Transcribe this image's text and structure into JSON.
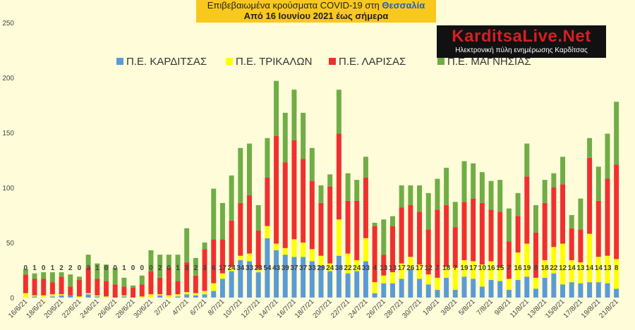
{
  "header": {
    "title_line1_prefix": "Επιβεβαιωμένα κρούσματα COVID-19 στη ",
    "title_line1_region": "Θεσσαλία",
    "title_line2": "Από 16 Ιουνίου 2021 έως σήμερα"
  },
  "logo": {
    "name": "KarditsaLive.Net",
    "tagline": "Ηλεκτρονική πύλη ενημέρωσης Καρδίτσας"
  },
  "colors": {
    "background": "#fffdd9",
    "kardits": "#5b9bd5",
    "trikala": "#ffff00",
    "larisa": "#f03030",
    "magnisia": "#70ad47"
  },
  "chart_data": {
    "type": "bar",
    "stacked": true,
    "ylim": [
      0,
      250
    ],
    "yticks": [
      0,
      50,
      100,
      150,
      200,
      250
    ],
    "grid": false,
    "legend_position": "top",
    "categories": [
      "16/6/21",
      "17/6/21",
      "18/6/21",
      "19/6/21",
      "20/6/21",
      "21/6/21",
      "22/6/21",
      "23/6/21",
      "24/6/21",
      "25/6/21",
      "26/6/21",
      "27/6/21",
      "28/6/21",
      "29/6/21",
      "30/6/21",
      "1/7/21",
      "2/7/21",
      "3/7/21",
      "4/7/21",
      "5/7/21",
      "6/7/21",
      "7/7/21",
      "8/7/21",
      "9/7/21",
      "10/7/21",
      "11/7/21",
      "12/7/21",
      "13/7/21",
      "14/7/21",
      "15/7/21",
      "16/7/21",
      "17/7/21",
      "18/7/21",
      "19/7/21",
      "20/7/21",
      "21/7/21",
      "22/7/21",
      "23/7/21",
      "24/7/21",
      "25/7/21",
      "26/7/21",
      "27/7/21",
      "28/7/21",
      "29/7/21",
      "30/7/21",
      "31/7/21",
      "1/8/21",
      "2/8/21",
      "3/8/21",
      "4/8/21",
      "5/8/21",
      "6/8/21",
      "7/8/21",
      "8/8/21",
      "9/8/21",
      "10/8/21",
      "11/8/21",
      "12/8/21",
      "13/8/21",
      "14/8/21",
      "15/8/21",
      "16/8/21",
      "17/8/21",
      "18/8/21",
      "19/8/21",
      "20/8/21",
      "21/8/21"
    ],
    "xtick_labels": [
      "16/6/21",
      "18/6/21",
      "20/6/21",
      "22/6/21",
      "24/6/21",
      "26/6/21",
      "28/6/21",
      "30/6/21",
      "2/7/21",
      "4/7/21",
      "6/7/21",
      "8/7/21",
      "10/7/21",
      "12/7/21",
      "14/7/21",
      "16/7/21",
      "18/7/21",
      "20/7/21",
      "22/7/21",
      "24/7/21",
      "26/7/21",
      "28/7/21",
      "30/7/21",
      "1/8/21",
      "3/8/21",
      "5/8/21",
      "7/8/21",
      "9/8/21",
      "11/8/21",
      "13/8/21",
      "15/8/21",
      "17/8/21",
      "19/8/21",
      "21/8/21"
    ],
    "series": [
      {
        "name": "Π.Ε. ΚΑΡΔΙΤΣΑΣ",
        "values": [
          0,
          1,
          0,
          1,
          2,
          2,
          0,
          3,
          1,
          0,
          0,
          1,
          0,
          0,
          0,
          2,
          0,
          1,
          3,
          2,
          3,
          6,
          17,
          24,
          34,
          33,
          23,
          54,
          43,
          39,
          37,
          37,
          33,
          29,
          24,
          38,
          22,
          24,
          33,
          4,
          13,
          13,
          17,
          26,
          17,
          12,
          7,
          18,
          7,
          19,
          17,
          10,
          16,
          15,
          7,
          16,
          19,
          8,
          18,
          22,
          12,
          14,
          13,
          14,
          14,
          13,
          8
        ]
      },
      {
        "name": "Π.Ε. ΤΡΙΚΑΛΩΝ",
        "values": [
          4,
          1,
          2,
          2,
          1,
          0,
          1,
          1,
          1,
          1,
          0,
          1,
          0,
          1,
          3,
          1,
          2,
          2,
          2,
          2,
          3,
          7,
          5,
          4,
          4,
          7,
          3,
          11,
          6,
          6,
          16,
          13,
          11,
          9,
          7,
          33,
          18,
          10,
          21,
          10,
          7,
          10,
          14,
          11,
          13,
          9,
          11,
          10,
          20,
          15,
          16,
          20,
          17,
          12,
          10,
          25,
          30,
          10,
          16,
          24,
          37,
          20,
          19,
          44,
          23,
          25,
          27
        ]
      },
      {
        "name": "Π.Ε. ΛΑΡΙΣΑΣ",
        "values": [
          17,
          15,
          15,
          11,
          16,
          8,
          15,
          24,
          15,
          14,
          12,
          8,
          9,
          11,
          21,
          15,
          25,
          12,
          27,
          16,
          38,
          40,
          31,
          42,
          48,
          53,
          35,
          44,
          98,
          78,
          90,
          76,
          62,
          48,
          70,
          78,
          48,
          54,
          55,
          51,
          19,
          42,
          51,
          47,
          48,
          41,
          62,
          56,
          37,
          53,
          57,
          56,
          47,
          51,
          34,
          33,
          61,
          41,
          52,
          54,
          54,
          29,
          30,
          69,
          51,
          70,
          86
        ]
      },
      {
        "name": "Π.Ε. ΜΑΓΝΗΣΙΑΣ",
        "values": [
          5,
          5,
          6,
          9,
          4,
          11,
          3,
          11,
          14,
          15,
          15,
          8,
          2,
          8,
          19,
          21,
          12,
          24,
          31,
          16,
          6,
          46,
          33,
          41,
          50,
          47,
          23,
          36,
          50,
          45,
          46,
          42,
          30,
          16,
          11,
          40,
          25,
          19,
          19,
          3,
          32,
          9,
          20,
          18,
          24,
          33,
          28,
          34,
          23,
          37,
          32,
          28,
          26,
          29,
          30,
          21,
          30,
          25,
          21,
          13,
          25,
          12,
          28,
          18,
          31,
          41,
          57
        ]
      }
    ],
    "data_labels": [
      "0",
      "1",
      "0",
      "1",
      "2",
      "2",
      "0",
      "3",
      "1",
      "0",
      "0",
      "1",
      "0",
      "0",
      "0",
      "2",
      "0",
      "1",
      "3",
      "2",
      "3",
      "6",
      "17",
      "24",
      "34",
      "33",
      "23",
      "54",
      "43",
      "39",
      "37",
      "37",
      "33",
      "29",
      "24",
      "38",
      "22",
      "24",
      "33",
      "4",
      "13",
      "13",
      "17",
      "26",
      "17",
      "12",
      "7",
      "18",
      "7",
      "19",
      "17",
      "10",
      "16",
      "15",
      "7",
      "16",
      "19",
      "8",
      "18",
      "22",
      "12",
      "14",
      "13",
      "14",
      "14",
      "13",
      "8"
    ]
  }
}
